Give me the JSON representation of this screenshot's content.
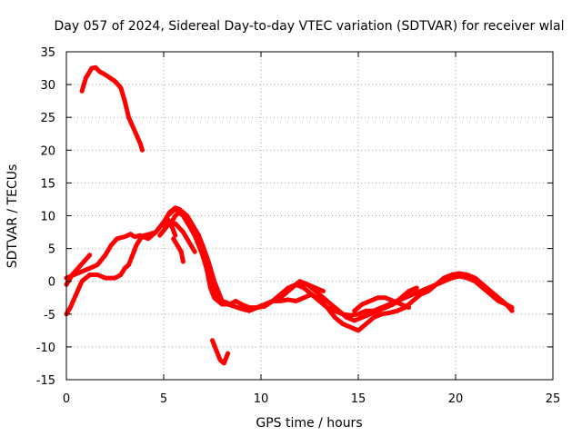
{
  "chart_data": {
    "type": "line",
    "title": "Day 057 of 2024, Sidereal Day-to-day VTEC variation (SDTVAR) for receiver wlal",
    "xlabel": "GPS time / hours",
    "ylabel": "SDTVAR / TECUs",
    "xlim": [
      0,
      25
    ],
    "ylim": [
      -15,
      35
    ],
    "xticks": [
      0,
      5,
      10,
      15,
      20,
      25
    ],
    "yticks": [
      -15,
      -10,
      -5,
      0,
      5,
      10,
      15,
      20,
      25,
      30,
      35
    ],
    "grid": true,
    "legend": "none",
    "color": "#ff0000",
    "series": [
      {
        "name": "arc-1",
        "x": [
          0.8,
          1.0,
          1.3,
          1.5,
          1.7,
          2.0,
          2.5,
          2.8,
          3.0,
          3.2,
          3.5,
          3.8,
          3.9
        ],
        "y": [
          29.0,
          31.0,
          32.5,
          32.6,
          32.0,
          31.5,
          30.5,
          29.5,
          27.5,
          25.0,
          23.0,
          21.0,
          20.0
        ]
      },
      {
        "name": "arc-2",
        "x": [
          0.0,
          0.3,
          0.6,
          0.9,
          1.2
        ],
        "y": [
          -0.5,
          1.0,
          2.0,
          3.0,
          4.0
        ]
      },
      {
        "name": "arc-3",
        "x": [
          0.0,
          0.4,
          0.8,
          1.2,
          1.6,
          2.0,
          2.3,
          2.6,
          3.0,
          3.3,
          3.5,
          3.8,
          4.2,
          4.6,
          5.0,
          5.2,
          5.4,
          5.6
        ],
        "y": [
          0.5,
          1.0,
          1.5,
          2.0,
          2.5,
          4.0,
          5.5,
          6.5,
          6.8,
          7.2,
          6.8,
          7.0,
          6.5,
          7.5,
          9.0,
          9.5,
          8.5,
          7.0
        ]
      },
      {
        "name": "arc-4",
        "x": [
          0.0,
          0.2,
          0.5,
          0.8,
          1.2,
          1.6,
          2.0,
          2.2,
          2.5,
          2.8,
          3.0,
          3.2,
          3.4,
          3.6,
          3.8,
          4.0,
          4.3,
          4.6,
          5.0,
          5.3,
          5.6,
          5.8,
          6.0,
          6.3,
          6.6,
          6.9,
          7.2,
          7.4,
          7.6,
          7.8,
          8.0,
          8.3,
          8.6,
          9.0,
          9.4,
          9.8,
          10.2,
          10.6,
          11.0,
          11.4,
          11.8,
          12.2,
          12.6,
          13.0,
          13.4,
          13.8,
          14.2,
          14.6,
          15.0,
          15.4,
          15.8,
          16.2,
          16.6,
          17.0,
          17.4,
          17.8,
          18.2,
          18.6,
          19.0,
          19.4,
          19.8,
          20.2,
          20.6,
          21.0,
          21.4,
          21.8,
          22.2,
          22.6,
          22.9
        ],
        "y": [
          -5.0,
          -4.0,
          -2.0,
          0.0,
          1.0,
          1.0,
          0.5,
          0.5,
          0.5,
          1.0,
          2.0,
          2.5,
          4.0,
          5.5,
          6.5,
          7.0,
          7.2,
          7.5,
          9.0,
          10.5,
          11.2,
          11.0,
          10.5,
          9.0,
          7.0,
          5.0,
          2.0,
          -1.0,
          -2.5,
          -3.0,
          -3.5,
          -3.5,
          -3.8,
          -4.2,
          -4.5,
          -4.0,
          -3.8,
          -3.0,
          -3.0,
          -2.8,
          -3.0,
          -2.5,
          -2.0,
          -2.8,
          -4.0,
          -5.5,
          -6.5,
          -7.0,
          -7.5,
          -6.5,
          -5.5,
          -5.0,
          -4.8,
          -4.5,
          -4.0,
          -3.0,
          -2.0,
          -1.5,
          -0.5,
          0.5,
          1.0,
          1.2,
          1.0,
          0.5,
          -0.5,
          -1.5,
          -2.5,
          -3.5,
          -4.5
        ]
      },
      {
        "name": "arc-5",
        "x": [
          5.4,
          5.6,
          5.8,
          6.0,
          6.2,
          6.4,
          6.6,
          6.8,
          7.0,
          7.2,
          7.4,
          7.6,
          7.8,
          8.0,
          8.2,
          8.4,
          8.7,
          9.0,
          9.4,
          9.8,
          10.2,
          10.6,
          11.0,
          11.4,
          11.8,
          12.2,
          12.6,
          13.0,
          13.4,
          13.8,
          14.2,
          14.6,
          15.0,
          15.4,
          15.8,
          16.2,
          16.6,
          17.0,
          17.4,
          17.8,
          18.2,
          18.6,
          19.0,
          19.4,
          19.8,
          20.2,
          20.6,
          21.0,
          21.4,
          21.8,
          22.2,
          22.6,
          22.9
        ],
        "y": [
          9.0,
          10.0,
          10.5,
          10.0,
          9.0,
          8.0,
          7.0,
          5.5,
          4.0,
          2.0,
          0.0,
          -1.0,
          -2.5,
          -3.0,
          -3.2,
          -3.5,
          -3.0,
          -3.5,
          -4.0,
          -4.0,
          -3.5,
          -3.0,
          -2.0,
          -1.0,
          -0.5,
          -1.0,
          -2.0,
          -3.0,
          -4.0,
          -4.5,
          -5.0,
          -5.2,
          -5.0,
          -4.5,
          -4.5,
          -4.0,
          -3.5,
          -3.0,
          -2.5,
          -2.0,
          -1.5,
          -1.0,
          -0.5,
          0.0,
          0.5,
          0.8,
          0.5,
          0.0,
          -1.0,
          -2.0,
          -3.0,
          -3.5,
          -4.0
        ]
      },
      {
        "name": "arc-6",
        "x": [
          5.0,
          5.2,
          5.5,
          5.8,
          6.0,
          6.2,
          6.5,
          6.8,
          7.0,
          7.3,
          7.6,
          7.8,
          8.0
        ],
        "y": [
          8.5,
          10.0,
          10.8,
          11.0,
          10.5,
          10.0,
          8.5,
          7.0,
          5.5,
          3.0,
          0.0,
          -1.5,
          -3.0
        ]
      },
      {
        "name": "arc-7",
        "x": [
          4.8,
          5.2,
          5.6,
          6.0,
          6.3,
          6.6
        ],
        "y": [
          7.0,
          8.5,
          8.8,
          7.5,
          6.0,
          4.5
        ]
      },
      {
        "name": "arc-8",
        "x": [
          5.5,
          5.7,
          5.9,
          6.0
        ],
        "y": [
          6.5,
          5.5,
          4.5,
          3.0
        ]
      },
      {
        "name": "arc-9",
        "x": [
          7.5,
          7.7,
          7.9,
          8.1,
          8.3
        ],
        "y": [
          -9.0,
          -10.5,
          -12.0,
          -12.5,
          -11.0
        ]
      },
      {
        "name": "arc-10",
        "x": [
          12.0,
          12.4,
          12.8,
          13.2,
          13.6,
          14.0,
          14.4,
          14.8,
          15.2,
          15.6,
          16.0,
          16.4,
          16.8,
          17.2,
          17.6,
          18.0
        ],
        "y": [
          -0.5,
          -0.5,
          -1.5,
          -2.5,
          -3.5,
          -4.5,
          -5.5,
          -6.0,
          -5.5,
          -5.0,
          -4.5,
          -4.0,
          -3.5,
          -2.5,
          -1.5,
          -1.0
        ]
      },
      {
        "name": "arc-11",
        "x": [
          10.8,
          11.2,
          11.6,
          12.0,
          12.4,
          12.8,
          13.2
        ],
        "y": [
          -3.0,
          -2.0,
          -1.0,
          0.0,
          -0.5,
          -1.0,
          -1.5
        ]
      },
      {
        "name": "arc-12",
        "x": [
          14.8,
          15.2,
          15.6,
          16.0,
          16.4,
          16.8,
          17.2,
          17.6
        ],
        "y": [
          -4.5,
          -3.5,
          -3.0,
          -2.5,
          -2.5,
          -3.0,
          -3.5,
          -4.0
        ]
      }
    ]
  }
}
